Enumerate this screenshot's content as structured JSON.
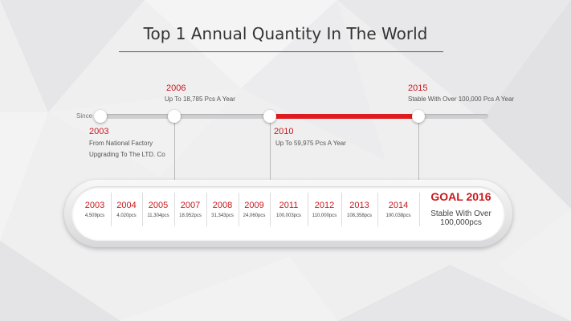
{
  "title": "Top 1 Annual Quantity In The World",
  "since_label": "Since",
  "milestones": [
    {
      "year": "2003",
      "lines": [
        "From National Factory",
        "Upgrading To The LTD. Co"
      ]
    },
    {
      "year": "2006",
      "lines": [
        "Up To 18,785 Pcs A Year"
      ]
    },
    {
      "year": "2010",
      "lines": [
        "Up To 59,975 Pcs A Year"
      ]
    },
    {
      "year": "2015",
      "lines": [
        "Stable With Over 100,000 Pcs A Year"
      ]
    }
  ],
  "years": [
    {
      "year": "2003",
      "qty": "4,509pcs"
    },
    {
      "year": "2004",
      "qty": "4,020pcs"
    },
    {
      "year": "2005",
      "qty": "11,304pcs"
    },
    {
      "year": "2007",
      "qty": "18,952pcs"
    },
    {
      "year": "2008",
      "qty": "31,343pcs"
    },
    {
      "year": "2009",
      "qty": "24,060pcs"
    },
    {
      "year": "2011",
      "qty": "100,003pcs"
    },
    {
      "year": "2012",
      "qty": "110,000pcs"
    },
    {
      "year": "2013",
      "qty": "108,358pcs"
    },
    {
      "year": "2014",
      "qty": "100,038pcs"
    }
  ],
  "goal": {
    "title": "GOAL 2016",
    "line1": "Stable With Over",
    "line2": "100,000pcs"
  },
  "colors": {
    "accent": "#c8171c",
    "highlight_bar": "#e01a1f",
    "track": "#cfcfd1"
  }
}
